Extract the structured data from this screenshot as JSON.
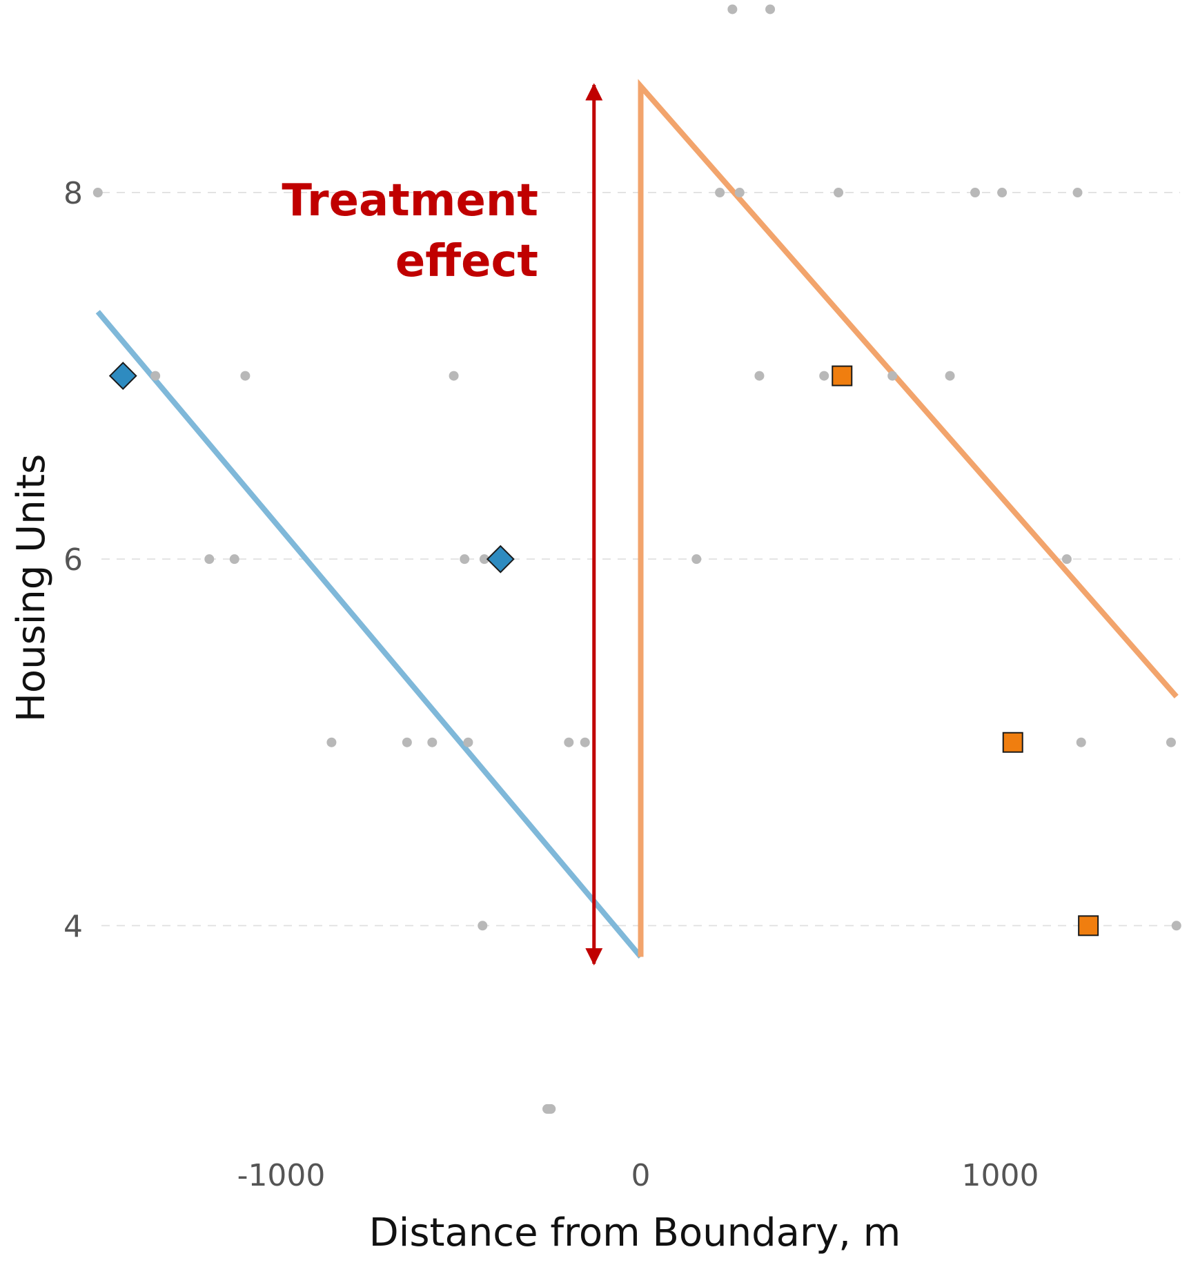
{
  "chart_data": {
    "type": "scatter",
    "xlabel": "Distance from Boundary, m",
    "ylabel": "Housing Units",
    "x_ticks": [
      -1000,
      0,
      1000
    ],
    "y_ticks": [
      4,
      6,
      8
    ],
    "xlim": [
      -1500,
      1500
    ],
    "ylim": [
      2.8,
      8.9
    ],
    "grid": "horizontal dashed",
    "annotation": {
      "line1": "Treatment",
      "line2": "effect",
      "x": -130,
      "y_from": 3.83,
      "y_to": 8.55
    },
    "background_points": [
      [
        -1510,
        8
      ],
      [
        -1350,
        7
      ],
      [
        -1100,
        7
      ],
      [
        -1200,
        6
      ],
      [
        -1130,
        6
      ],
      [
        -860,
        5
      ],
      [
        -650,
        5
      ],
      [
        -580,
        5
      ],
      [
        -480,
        5
      ],
      [
        -520,
        7
      ],
      [
        -490,
        6
      ],
      [
        -435,
        6
      ],
      [
        -440,
        4
      ],
      [
        -200,
        5
      ],
      [
        -155,
        5
      ],
      [
        -260,
        3
      ],
      [
        -255,
        3
      ],
      [
        -250,
        3
      ],
      [
        255,
        9
      ],
      [
        360,
        9
      ],
      [
        220,
        8
      ],
      [
        275,
        8
      ],
      [
        550,
        8
      ],
      [
        930,
        8
      ],
      [
        1005,
        8
      ],
      [
        1215,
        8
      ],
      [
        330,
        7
      ],
      [
        510,
        7
      ],
      [
        700,
        7
      ],
      [
        860,
        7
      ],
      [
        155,
        6
      ],
      [
        1185,
        6
      ],
      [
        1225,
        5
      ],
      [
        1475,
        5
      ],
      [
        1490,
        4
      ]
    ],
    "series": [
      {
        "role": "fit left of boundary",
        "color": "#7fb8d9",
        "x": [
          -1510,
          0
        ],
        "y": [
          7.35,
          3.83
        ]
      },
      {
        "role": "fit right of boundary",
        "color": "#f2a46c",
        "x": [
          0,
          0,
          1490
        ],
        "y": [
          3.83,
          8.58,
          5.25
        ]
      },
      {
        "role": "highlighted points left",
        "color": "#2e8bc0",
        "marker": "diamond",
        "x": [
          -1440,
          -390
        ],
        "y": [
          7,
          6
        ]
      },
      {
        "role": "highlighted points right",
        "color": "#f07e0f",
        "marker": "square",
        "x": [
          560,
          1035,
          1245
        ],
        "y": [
          7,
          5,
          4
        ]
      }
    ]
  }
}
